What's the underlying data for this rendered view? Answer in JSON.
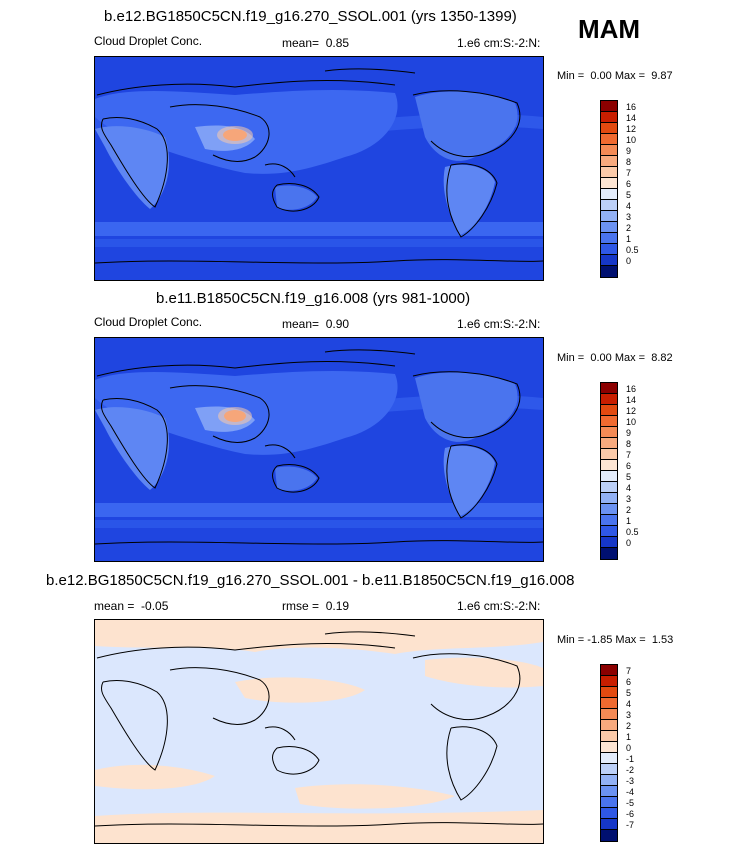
{
  "season": "MAM",
  "colors": {
    "ocean_dark": "#1f45e0",
    "band_mid": "#3a66f0",
    "land_light": "#7fa0f6",
    "hot": "#f07a40",
    "diff_neg": "#d9e7ff",
    "diff_pos": "#fde3cf",
    "coast": "#000000"
  },
  "panels": [
    {
      "title": "b.e12.BG1850C5CN.f19_g16.270_SSOL.001 (yrs 1350-1399)",
      "left_label": "Cloud Droplet Conc.",
      "stat_label": "mean=",
      "stat_value": "0.85",
      "units": "1.e6 cm:S:-2:N:",
      "min_label": "Min =",
      "min_value": "0.00",
      "max_label": "Max =",
      "max_value": "9.87",
      "colorbar": {
        "labels": [
          "16",
          "14",
          "12",
          "10",
          "9",
          "8",
          "7",
          "6",
          "5",
          "4",
          "3",
          "2",
          "1",
          "0.5",
          "0"
        ],
        "colors": [
          "#8b0000",
          "#c81e00",
          "#e24a10",
          "#f06a30",
          "#f48a55",
          "#f8aa7e",
          "#fbcaa9",
          "#fde5d3",
          "#e3ecfb",
          "#bcd0f8",
          "#92b1f5",
          "#6b92f2",
          "#4a74ee",
          "#2f58e6",
          "#1637c8",
          "#001070"
        ]
      }
    },
    {
      "title": "b.e11.B1850C5CN.f19_g16.008 (yrs 981-1000)",
      "left_label": "Cloud Droplet Conc.",
      "stat_label": "mean=",
      "stat_value": "0.90",
      "units": "1.e6 cm:S:-2:N:",
      "min_label": "Min =",
      "min_value": "0.00",
      "max_label": "Max =",
      "max_value": "8.82",
      "colorbar": {
        "labels": [
          "16",
          "14",
          "12",
          "10",
          "9",
          "8",
          "7",
          "6",
          "5",
          "4",
          "3",
          "2",
          "1",
          "0.5",
          "0"
        ],
        "colors": [
          "#8b0000",
          "#c81e00",
          "#e24a10",
          "#f06a30",
          "#f48a55",
          "#f8aa7e",
          "#fbcaa9",
          "#fde5d3",
          "#e3ecfb",
          "#bcd0f8",
          "#92b1f5",
          "#6b92f2",
          "#4a74ee",
          "#2f58e6",
          "#1637c8",
          "#001070"
        ]
      }
    },
    {
      "title": "b.e12.BG1850C5CN.f19_g16.270_SSOL.001 - b.e11.B1850C5CN.f19_g16.008",
      "left_label": "mean =",
      "left_value": "-0.05",
      "stat_label": "rmse =",
      "stat_value": "0.19",
      "units": "1.e6 cm:S:-2:N:",
      "min_label": "Min =",
      "min_value": "-1.85",
      "max_label": "Max =",
      "max_value": "1.53",
      "colorbar": {
        "labels": [
          "7",
          "6",
          "5",
          "4",
          "3",
          "2",
          "1",
          "0",
          "-1",
          "-2",
          "-3",
          "-4",
          "-5",
          "-6",
          "-7"
        ],
        "colors": [
          "#8b0000",
          "#c81e00",
          "#e24a10",
          "#f06a30",
          "#f48a55",
          "#f8aa7e",
          "#fbcaa9",
          "#fde5d3",
          "#e3ecfb",
          "#bcd0f8",
          "#92b1f5",
          "#6b92f2",
          "#4a74ee",
          "#2f58e6",
          "#1637c8",
          "#001070"
        ]
      }
    }
  ]
}
